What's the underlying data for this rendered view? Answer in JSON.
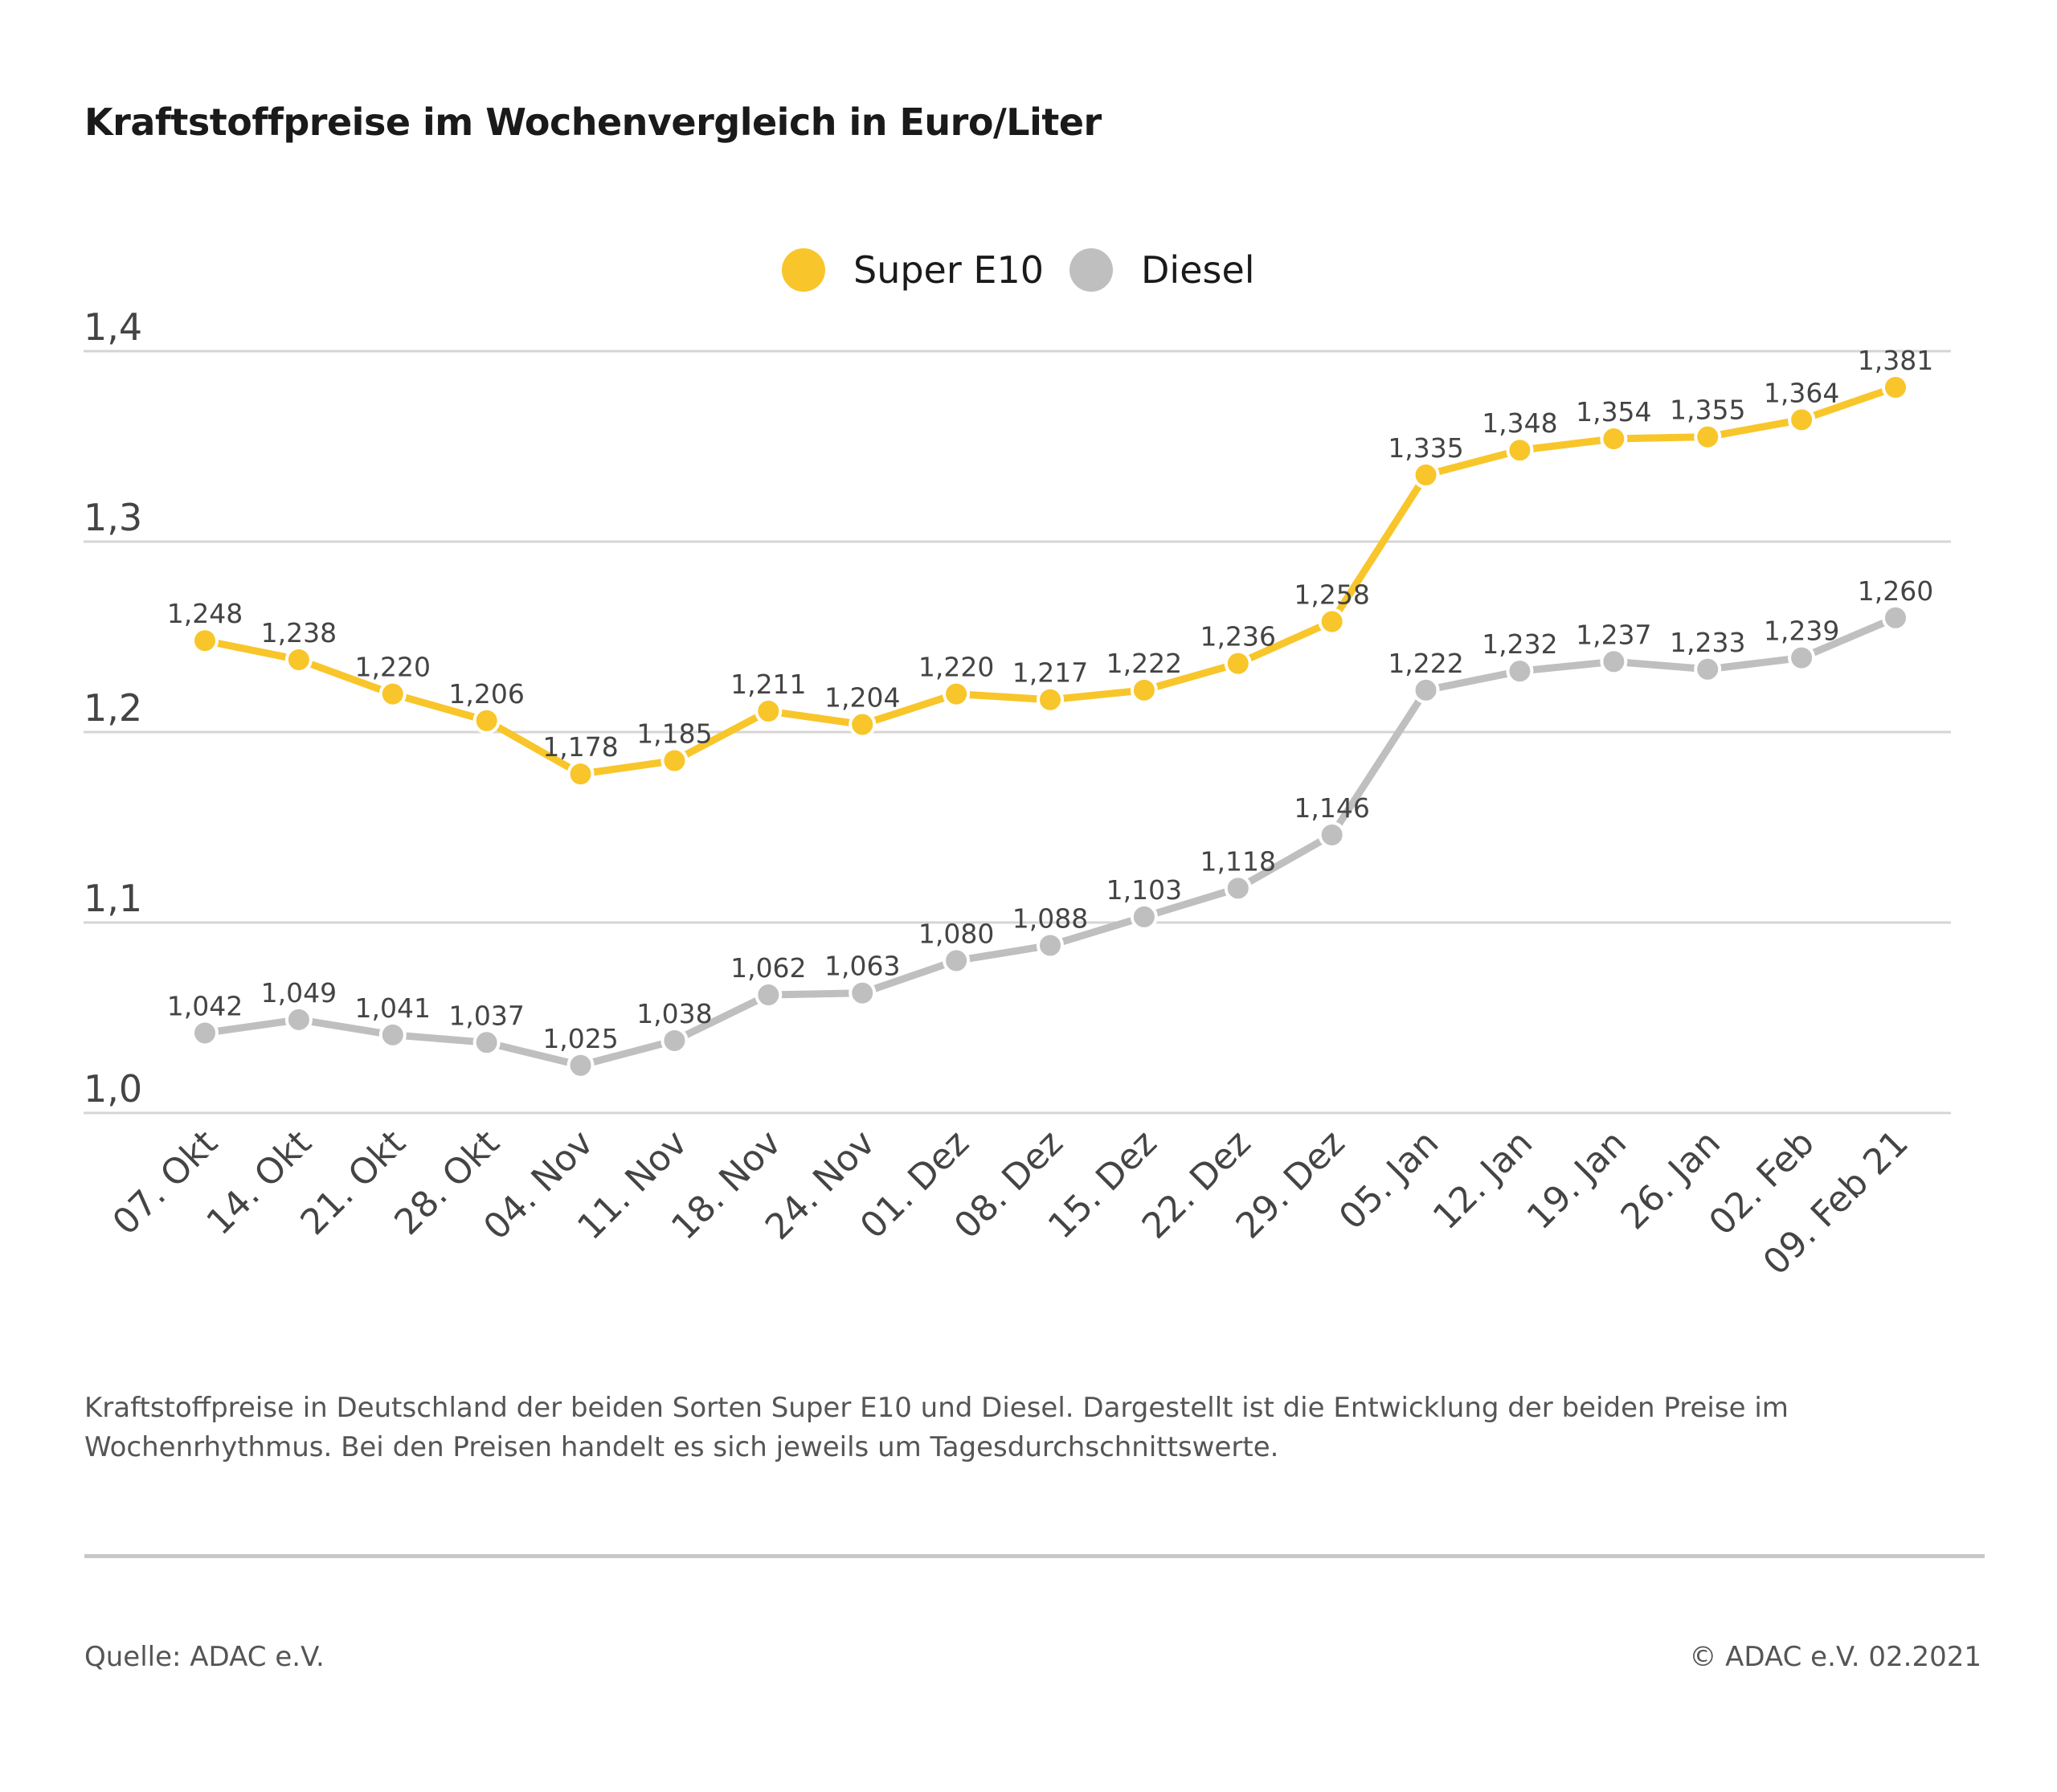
{
  "chart_data": {
    "type": "line",
    "title": "Kraftstoffpreise im Wochenvergleich in Euro/Liter",
    "categories": [
      "07. Okt",
      "14. Okt",
      "21. Okt",
      "28. Okt",
      "04. Nov",
      "11. Nov",
      "18. Nov",
      "24. Nov",
      "01. Dez",
      "08. Dez",
      "15. Dez",
      "22. Dez",
      "29. Dez",
      "05. Jan",
      "12. Jan",
      "19. Jan",
      "26. Jan",
      "02. Feb",
      "09. Feb 21"
    ],
    "series": [
      {
        "name": "Super E10",
        "color": "#F8C62A",
        "values": [
          1.248,
          1.238,
          1.22,
          1.206,
          1.178,
          1.185,
          1.211,
          1.204,
          1.22,
          1.217,
          1.222,
          1.236,
          1.258,
          1.335,
          1.348,
          1.354,
          1.355,
          1.364,
          1.381
        ],
        "labels": [
          "1,248",
          "1,238",
          "1,220",
          "1,206",
          "1,178",
          "1,185",
          "1,211",
          "1,204",
          "1,220",
          "1,217",
          "1,222",
          "1,236",
          "1,258",
          "1,335",
          "1,348",
          "1,354",
          "1,355",
          "1,364",
          "1,381"
        ]
      },
      {
        "name": "Diesel",
        "color": "#BFBFBF",
        "values": [
          1.042,
          1.049,
          1.041,
          1.037,
          1.025,
          1.038,
          1.062,
          1.063,
          1.08,
          1.088,
          1.103,
          1.118,
          1.146,
          1.222,
          1.232,
          1.237,
          1.233,
          1.239,
          1.26
        ],
        "labels": [
          "1,042",
          "1,049",
          "1,041",
          "1,037",
          "1,025",
          "1,038",
          "1,062",
          "1,063",
          "1,080",
          "1,088",
          "1,103",
          "1,118",
          "1,146",
          "1,222",
          "1,232",
          "1,237",
          "1,233",
          "1,239",
          "1,260"
        ]
      }
    ],
    "ylim": [
      1.0,
      1.4
    ],
    "yticks": [
      1.0,
      1.1,
      1.2,
      1.3,
      1.4
    ],
    "ytick_labels": [
      "1,0",
      "1,1",
      "1,2",
      "1,3",
      "1,4"
    ],
    "grid": true,
    "legend": "top-center"
  },
  "footnote": "Kraftstoffpreise in Deutschland der beiden Sorten Super E10 und Diesel. Dargestellt ist die Entwicklung der beiden Preise im Wochenrhythmus. Bei den Preisen handelt es sich jeweils um Tagesdurchschnittswerte.",
  "source": "Quelle: ADAC e.V.",
  "copyright": "© ADAC e.V. 02.2021"
}
